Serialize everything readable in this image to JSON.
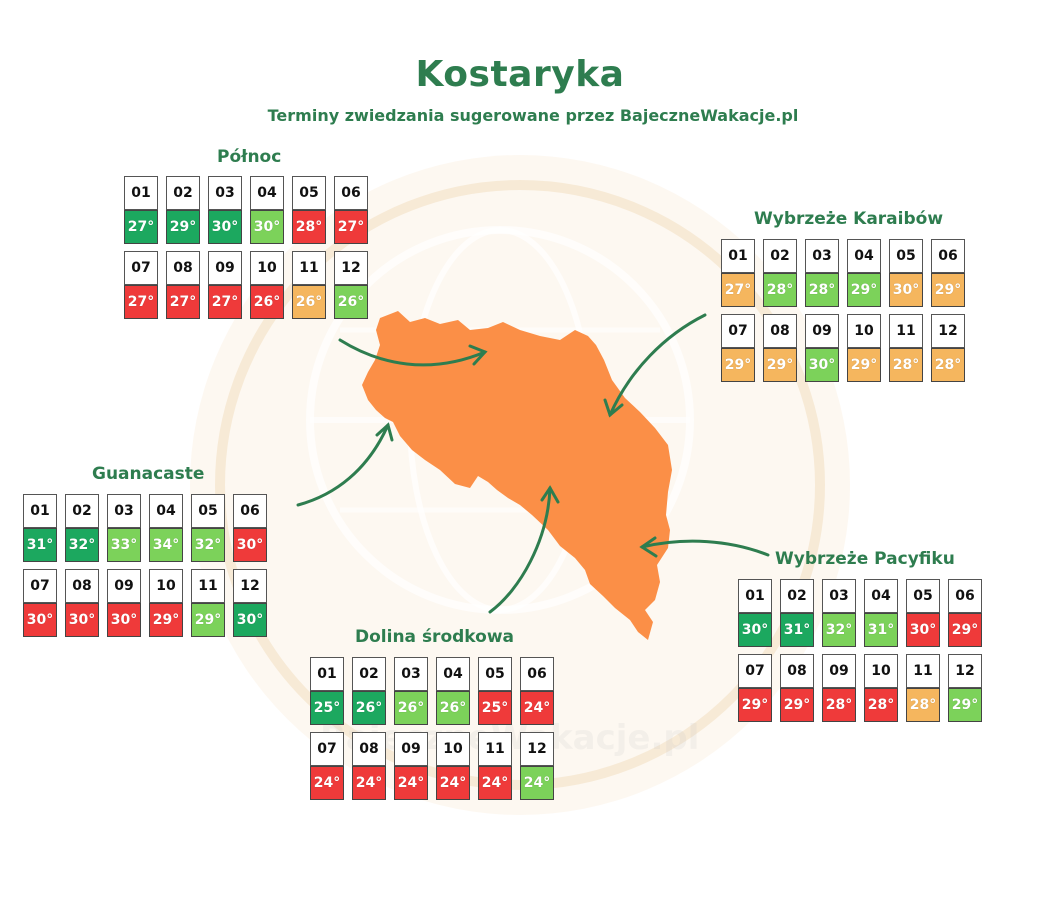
{
  "title": "Kostaryka",
  "subtitle": "Terminy zwiedzania sugerowane przez BajeczneWakacje.pl",
  "watermark": "BajeczneWakacje.pl",
  "colors": {
    "dark_green": "#1ca85f",
    "light_green": "#7cd25a",
    "orange": "#f5b65e",
    "red": "#ef3a3a",
    "map": "#fb8f47",
    "arrow": "#2e7d4f"
  },
  "regions": [
    {
      "id": "polnoc",
      "name": "Północ",
      "months": [
        {
          "m": "01",
          "t": "27°",
          "c": "dark_green"
        },
        {
          "m": "02",
          "t": "29°",
          "c": "dark_green"
        },
        {
          "m": "03",
          "t": "30°",
          "c": "dark_green"
        },
        {
          "m": "04",
          "t": "30°",
          "c": "light_green"
        },
        {
          "m": "05",
          "t": "28°",
          "c": "red"
        },
        {
          "m": "06",
          "t": "27°",
          "c": "red"
        },
        {
          "m": "07",
          "t": "27°",
          "c": "red"
        },
        {
          "m": "08",
          "t": "27°",
          "c": "red"
        },
        {
          "m": "09",
          "t": "27°",
          "c": "red"
        },
        {
          "m": "10",
          "t": "26°",
          "c": "red"
        },
        {
          "m": "11",
          "t": "26°",
          "c": "orange"
        },
        {
          "m": "12",
          "t": "26°",
          "c": "light_green"
        }
      ]
    },
    {
      "id": "karaiby",
      "name": "Wybrzeże Karaibów",
      "months": [
        {
          "m": "01",
          "t": "27°",
          "c": "orange"
        },
        {
          "m": "02",
          "t": "28°",
          "c": "light_green"
        },
        {
          "m": "03",
          "t": "28°",
          "c": "light_green"
        },
        {
          "m": "04",
          "t": "29°",
          "c": "light_green"
        },
        {
          "m": "05",
          "t": "30°",
          "c": "orange"
        },
        {
          "m": "06",
          "t": "29°",
          "c": "orange"
        },
        {
          "m": "07",
          "t": "29°",
          "c": "orange"
        },
        {
          "m": "08",
          "t": "29°",
          "c": "orange"
        },
        {
          "m": "09",
          "t": "30°",
          "c": "light_green"
        },
        {
          "m": "10",
          "t": "29°",
          "c": "orange"
        },
        {
          "m": "11",
          "t": "28°",
          "c": "orange"
        },
        {
          "m": "12",
          "t": "28°",
          "c": "orange"
        }
      ]
    },
    {
      "id": "guanacaste",
      "name": "Guanacaste",
      "months": [
        {
          "m": "01",
          "t": "31°",
          "c": "dark_green"
        },
        {
          "m": "02",
          "t": "32°",
          "c": "dark_green"
        },
        {
          "m": "03",
          "t": "33°",
          "c": "light_green"
        },
        {
          "m": "04",
          "t": "34°",
          "c": "light_green"
        },
        {
          "m": "05",
          "t": "32°",
          "c": "light_green"
        },
        {
          "m": "06",
          "t": "30°",
          "c": "red"
        },
        {
          "m": "07",
          "t": "30°",
          "c": "red"
        },
        {
          "m": "08",
          "t": "30°",
          "c": "red"
        },
        {
          "m": "09",
          "t": "30°",
          "c": "red"
        },
        {
          "m": "10",
          "t": "29°",
          "c": "red"
        },
        {
          "m": "11",
          "t": "29°",
          "c": "light_green"
        },
        {
          "m": "12",
          "t": "30°",
          "c": "dark_green"
        }
      ]
    },
    {
      "id": "pacyfik",
      "name": "Wybrzeże Pacyfiku",
      "months": [
        {
          "m": "01",
          "t": "30°",
          "c": "dark_green"
        },
        {
          "m": "02",
          "t": "31°",
          "c": "dark_green"
        },
        {
          "m": "03",
          "t": "32°",
          "c": "light_green"
        },
        {
          "m": "04",
          "t": "31°",
          "c": "light_green"
        },
        {
          "m": "05",
          "t": "30°",
          "c": "red"
        },
        {
          "m": "06",
          "t": "29°",
          "c": "red"
        },
        {
          "m": "07",
          "t": "29°",
          "c": "red"
        },
        {
          "m": "08",
          "t": "29°",
          "c": "red"
        },
        {
          "m": "09",
          "t": "28°",
          "c": "red"
        },
        {
          "m": "10",
          "t": "28°",
          "c": "red"
        },
        {
          "m": "11",
          "t": "28°",
          "c": "orange"
        },
        {
          "m": "12",
          "t": "29°",
          "c": "light_green"
        }
      ]
    },
    {
      "id": "dolina",
      "name": "Dolina środkowa",
      "months": [
        {
          "m": "01",
          "t": "25°",
          "c": "dark_green"
        },
        {
          "m": "02",
          "t": "26°",
          "c": "dark_green"
        },
        {
          "m": "03",
          "t": "26°",
          "c": "light_green"
        },
        {
          "m": "04",
          "t": "26°",
          "c": "light_green"
        },
        {
          "m": "05",
          "t": "25°",
          "c": "red"
        },
        {
          "m": "06",
          "t": "24°",
          "c": "red"
        },
        {
          "m": "07",
          "t": "24°",
          "c": "red"
        },
        {
          "m": "08",
          "t": "24°",
          "c": "red"
        },
        {
          "m": "09",
          "t": "24°",
          "c": "red"
        },
        {
          "m": "10",
          "t": "24°",
          "c": "red"
        },
        {
          "m": "11",
          "t": "24°",
          "c": "red"
        },
        {
          "m": "12",
          "t": "24°",
          "c": "light_green"
        }
      ]
    }
  ]
}
